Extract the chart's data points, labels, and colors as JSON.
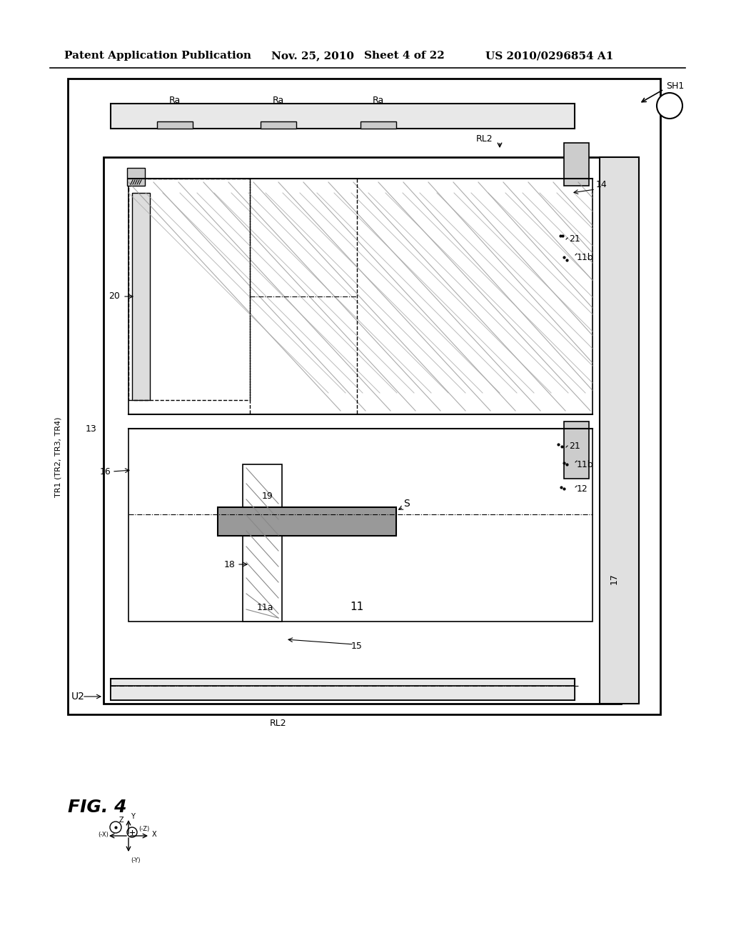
{
  "bg_color": "#ffffff",
  "header_text": "Patent Application Publication",
  "header_date": "Nov. 25, 2010",
  "header_sheet": "Sheet 4 of 22",
  "header_patent": "US 2010/0296854 A1",
  "fig_label": "FIG. 4",
  "title_fontsize": 11,
  "body_fontsize": 9
}
